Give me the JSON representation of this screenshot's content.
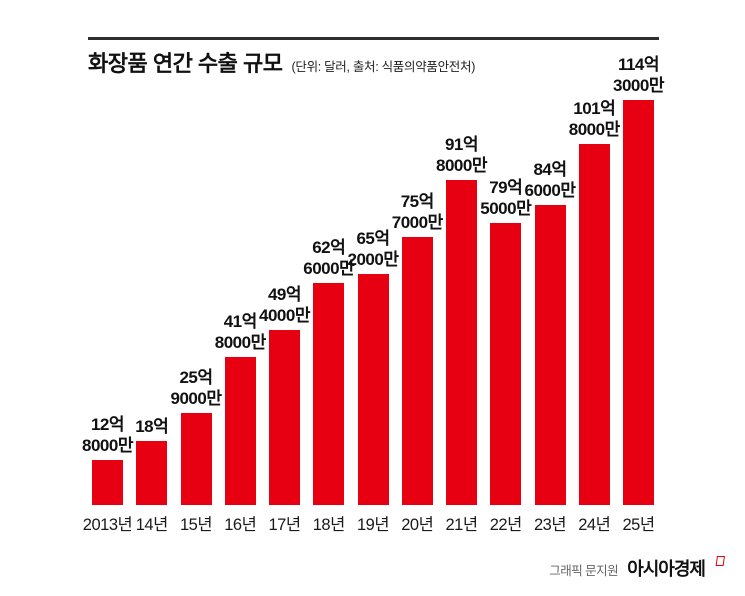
{
  "header": {
    "title": "화장품 연간 수출 규모",
    "subtitle": "(단위: 달러, 출처: 식품의약품안전처)"
  },
  "chart_data": {
    "type": "bar",
    "title": "화장품 연간 수출 규모",
    "unit_note": "단위: 달러",
    "source": "식품의약품안전처",
    "categories": [
      "2013년",
      "14년",
      "15년",
      "16년",
      "17년",
      "18년",
      "19년",
      "20년",
      "21년",
      "22년",
      "23년",
      "24년",
      "25년"
    ],
    "values_eok_usd": [
      12.8,
      18,
      25.9,
      41.8,
      49.4,
      62.6,
      65.2,
      75.7,
      91.8,
      79.5,
      84.6,
      101.8,
      114.3
    ],
    "value_labels": [
      "12억\n8000만",
      "18억",
      "25억\n9000만",
      "41억\n8000만",
      "49억\n4000만",
      "62억\n6000만",
      "65억\n2000만",
      "75억\n7000만",
      "91억\n8000만",
      "79억\n5000만",
      "84억\n6000만",
      "101억\n8000만",
      "114억\n3000만"
    ],
    "bar_color": "#e60012",
    "label_color": "#111111",
    "ylim": [
      0,
      120
    ],
    "grid": false,
    "legend": false,
    "xlabel": "",
    "ylabel": ""
  },
  "footer": {
    "credit": "그래픽 문지원",
    "publisher": "아시아경제",
    "logo_mark_color": "#e60012"
  }
}
